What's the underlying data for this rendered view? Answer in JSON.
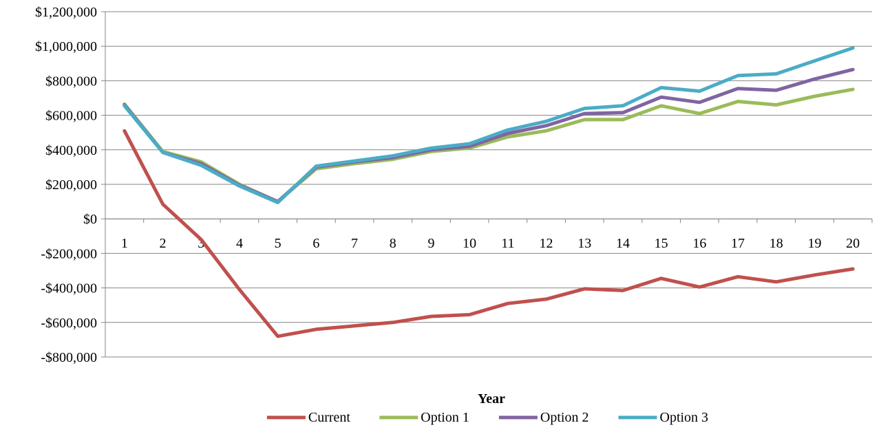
{
  "chart_data": {
    "type": "line",
    "title": "",
    "xlabel": "Year",
    "ylabel": "",
    "x": [
      1,
      2,
      3,
      4,
      5,
      6,
      7,
      8,
      9,
      10,
      11,
      12,
      13,
      14,
      15,
      16,
      17,
      18,
      19,
      20
    ],
    "x_tick_labels": [
      "1",
      "2",
      "3",
      "4",
      "5",
      "6",
      "7",
      "8",
      "9",
      "10",
      "11",
      "12",
      "13",
      "14",
      "15",
      "16",
      "17",
      "18",
      "19",
      "20"
    ],
    "ylim": [
      -800000,
      1200000
    ],
    "y_ticks": [
      -800000,
      -600000,
      -400000,
      -200000,
      0,
      200000,
      400000,
      600000,
      800000,
      1000000,
      1200000
    ],
    "y_tick_labels": [
      "-$800,000",
      "-$600,000",
      "-$400,000",
      "-$200,000",
      "$0",
      "$200,000",
      "$400,000",
      "$600,000",
      "$800,000",
      "$1,000,000",
      "$1,200,000"
    ],
    "grid": "horizontal",
    "legend_position": "bottom",
    "series": [
      {
        "name": "Current",
        "color": "#C0504D",
        "values": [
          510000,
          85000,
          -120000,
          -410000,
          -680000,
          -640000,
          -620000,
          -600000,
          -565000,
          -555000,
          -490000,
          -465000,
          -405000,
          -415000,
          -345000,
          -395000,
          -335000,
          -365000,
          -325000,
          -290000
        ]
      },
      {
        "name": "Option 1",
        "color": "#9BBB59",
        "values": [
          665000,
          390000,
          330000,
          200000,
          100000,
          290000,
          320000,
          345000,
          390000,
          410000,
          475000,
          510000,
          575000,
          575000,
          655000,
          610000,
          680000,
          660000,
          710000,
          750000
        ]
      },
      {
        "name": "Option 2",
        "color": "#8064A2",
        "values": [
          660000,
          385000,
          320000,
          195000,
          100000,
          300000,
          330000,
          355000,
          400000,
          420000,
          495000,
          540000,
          610000,
          615000,
          705000,
          675000,
          755000,
          745000,
          810000,
          865000
        ]
      },
      {
        "name": "Option 3",
        "color": "#4BACC6",
        "values": [
          655000,
          385000,
          310000,
          190000,
          95000,
          305000,
          335000,
          365000,
          410000,
          435000,
          515000,
          565000,
          640000,
          655000,
          760000,
          740000,
          830000,
          840000,
          915000,
          990000
        ]
      }
    ]
  },
  "axis_color": "#868686",
  "grid_color": "#868686"
}
